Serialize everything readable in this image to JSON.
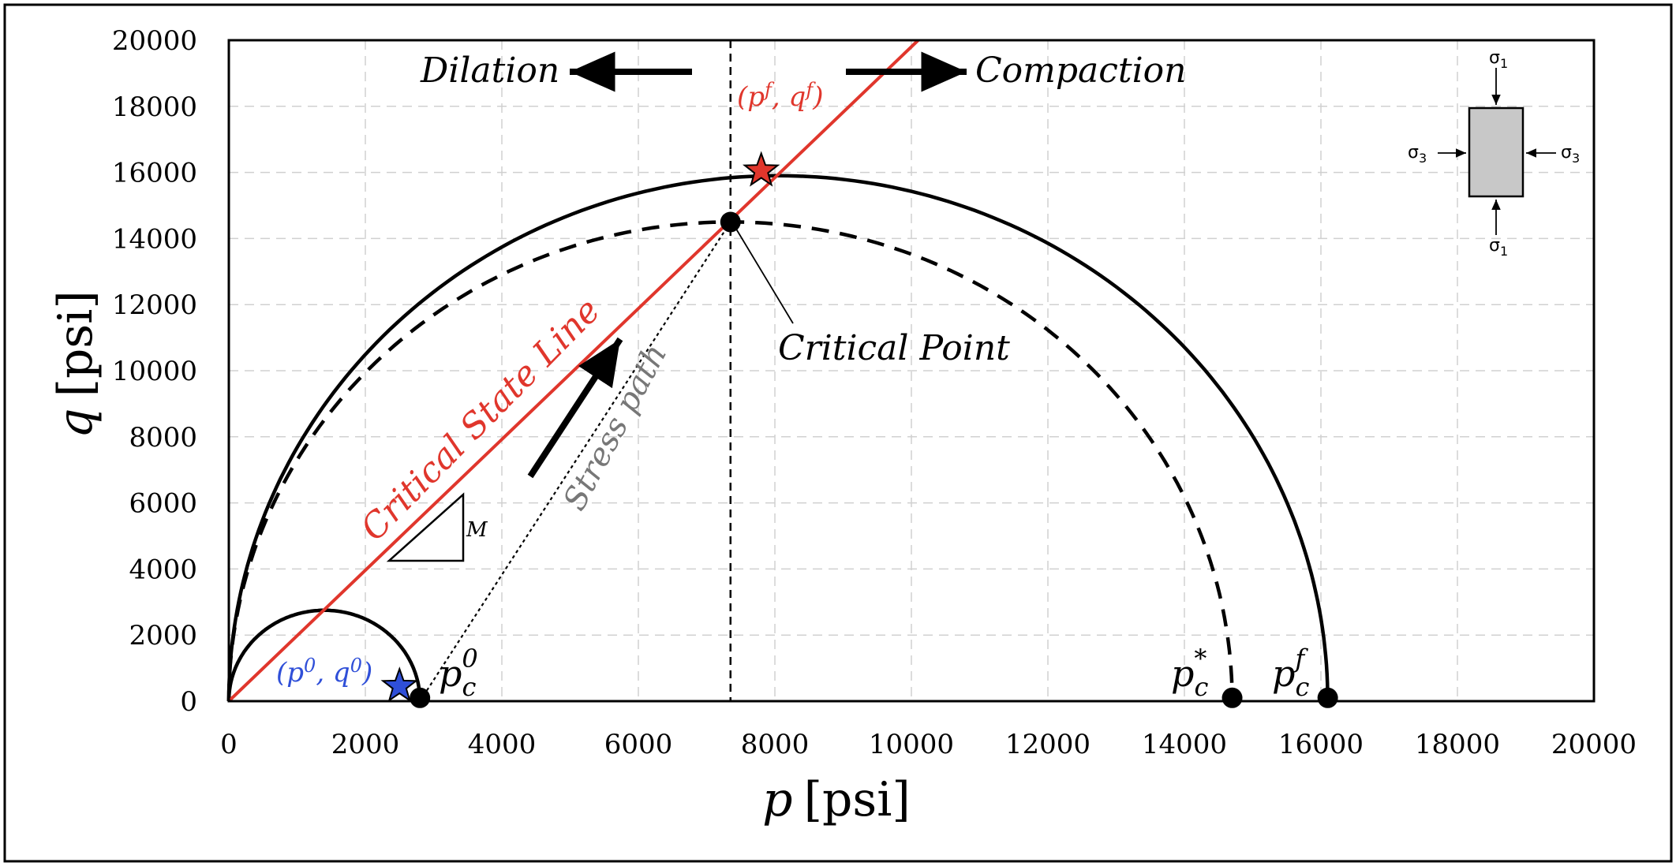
{
  "chart_data": {
    "type": "line",
    "xlabel": {
      "var": "p",
      "unit": "[psi]"
    },
    "ylabel": {
      "var": "q",
      "unit": "[psi]"
    },
    "xlim": [
      0,
      20000
    ],
    "ylim": [
      0,
      20000
    ],
    "xticks": [
      0,
      2000,
      4000,
      6000,
      8000,
      10000,
      12000,
      14000,
      16000,
      18000,
      20000
    ],
    "yticks": [
      0,
      2000,
      4000,
      6000,
      8000,
      10000,
      12000,
      14000,
      16000,
      18000,
      20000
    ],
    "grid": true,
    "series": [
      {
        "style": "solid-black",
        "type": "yield-ellipse",
        "p_start": 0,
        "p_end": 16100,
        "q_max": 15900
      },
      {
        "style": "dashed-black",
        "type": "yield-ellipse",
        "p_start": 0,
        "p_end": 14700,
        "q_max": 14500
      },
      {
        "style": "solid-black",
        "type": "yield-ellipse",
        "p_start": 0,
        "p_end": 2800,
        "q_max": 2750
      },
      {
        "style": "solid-red",
        "type": "line",
        "name": "Critical State Line",
        "x": [
          0,
          10100
        ],
        "y": [
          0,
          20000
        ]
      },
      {
        "style": "dotted-black",
        "type": "line",
        "x": [
          2800,
          7350
        ],
        "y": [
          0,
          14500
        ]
      },
      {
        "style": "dashed-black",
        "type": "vline",
        "x": 7350
      }
    ],
    "points": [
      {
        "name": "pc0",
        "x": 2800,
        "y": 100,
        "marker": "dot"
      },
      {
        "name": "pc_star",
        "x": 14700,
        "y": 100,
        "marker": "dot"
      },
      {
        "name": "pcf",
        "x": 16100,
        "y": 100,
        "marker": "dot"
      },
      {
        "name": "critical-point",
        "x": 7350,
        "y": 14500,
        "marker": "dot"
      },
      {
        "name": "initial-state",
        "x": 2500,
        "y": 450,
        "marker": "star",
        "color": "#2f4fd8"
      },
      {
        "name": "final-state",
        "x": 7800,
        "y": 16050,
        "marker": "star",
        "color": "#e0362c"
      }
    ],
    "annotations": {
      "dilation": "Dilation",
      "compaction": "Compaction",
      "critical_point": "Critical Point",
      "critical_state_line": "Critical State Line",
      "stress_path": "Stress path",
      "slope": "M",
      "final_state": "(p",
      "final_state_sup1": "f",
      "final_state_mid": ", q",
      "final_state_sup2": "f",
      "final_state_end": ")",
      "initial_state": "(p",
      "initial_state_sup1": "0",
      "initial_state_mid": ", q",
      "initial_state_sup2": "0",
      "initial_state_end": ")",
      "pc0_base": "p",
      "pc0_sub": "c",
      "pc0_sup": "0",
      "pcs_base": "p",
      "pcs_sub": "c",
      "pcs_sup": "*",
      "pcf_base": "p",
      "pcf_sub": "c",
      "pcf_sup": "f",
      "sigma1_top": "σ",
      "sigma1_top_sub": "1",
      "sigma1_bottom": "σ",
      "sigma1_bottom_sub": "1",
      "sigma3_left": "σ",
      "sigma3_left_sub": "3",
      "sigma3_right": "σ",
      "sigma3_right_sub": "3"
    },
    "colors": {
      "csl": "#e0362c",
      "initial": "#2f4fd8",
      "stress_path_text": "#777777"
    }
  }
}
